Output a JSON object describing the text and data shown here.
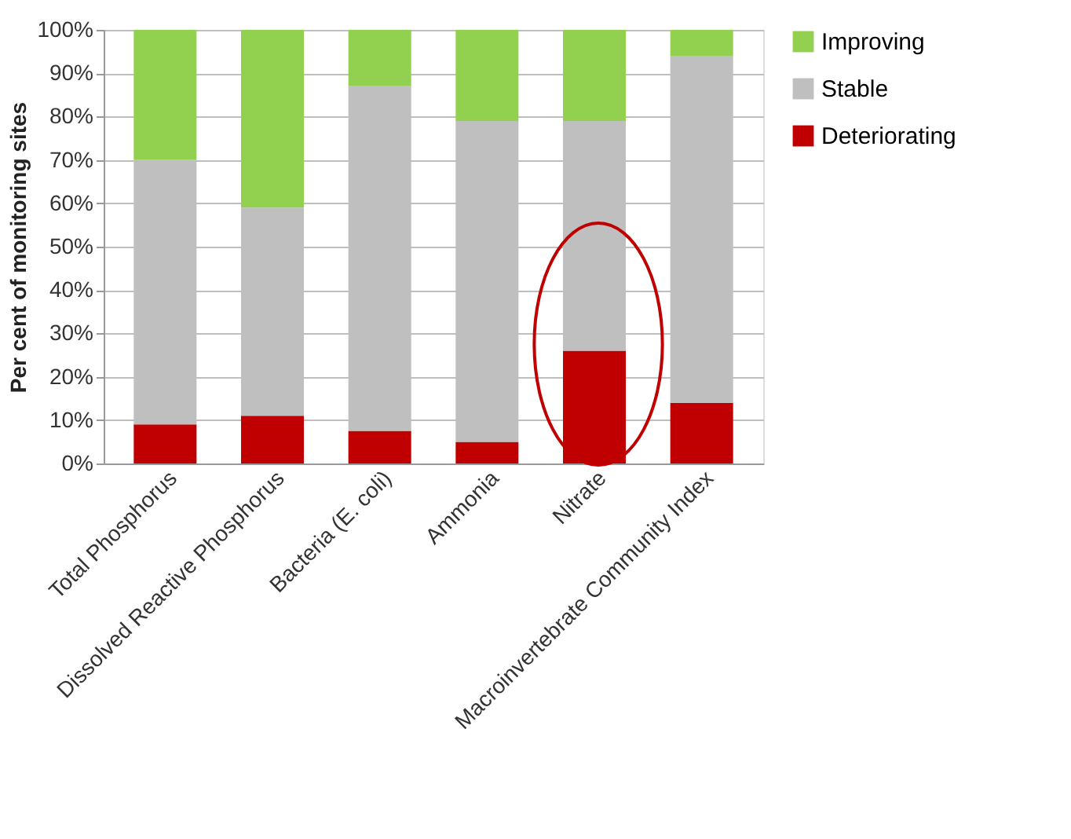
{
  "chart_data": {
    "type": "bar",
    "stacked": true,
    "ylabel": "Per cent of monitoring sites",
    "categories": [
      "Total Phosphorus",
      "Dissolved Reactive Phosphorus",
      "Bacteria (E. coli)",
      "Ammonia",
      "Nitrate",
      "Macroinvertebrate Community Index"
    ],
    "series": [
      {
        "name": "Deteriorating",
        "color": "#c00000",
        "values": [
          9,
          11,
          7.5,
          5,
          26,
          14
        ]
      },
      {
        "name": "Stable",
        "color": "#bfbfbf",
        "values": [
          61,
          48,
          79.5,
          74,
          53,
          80
        ]
      },
      {
        "name": "Improving",
        "color": "#92d050",
        "values": [
          30,
          41,
          13,
          21,
          21,
          6
        ]
      }
    ],
    "ylim": [
      0,
      100
    ],
    "yticks": [
      {
        "value": 0,
        "label": "0%"
      },
      {
        "value": 10,
        "label": "10%"
      },
      {
        "value": 20,
        "label": "20%"
      },
      {
        "value": 30,
        "label": "30%"
      },
      {
        "value": 40,
        "label": "40%"
      },
      {
        "value": 50,
        "label": "50%"
      },
      {
        "value": 60,
        "label": "60%"
      },
      {
        "value": 70,
        "label": "70%"
      },
      {
        "value": 80,
        "label": "80%"
      },
      {
        "value": 90,
        "label": "90%"
      },
      {
        "value": 100,
        "label": "100%"
      }
    ],
    "grid": "y",
    "legend": "right"
  }
}
